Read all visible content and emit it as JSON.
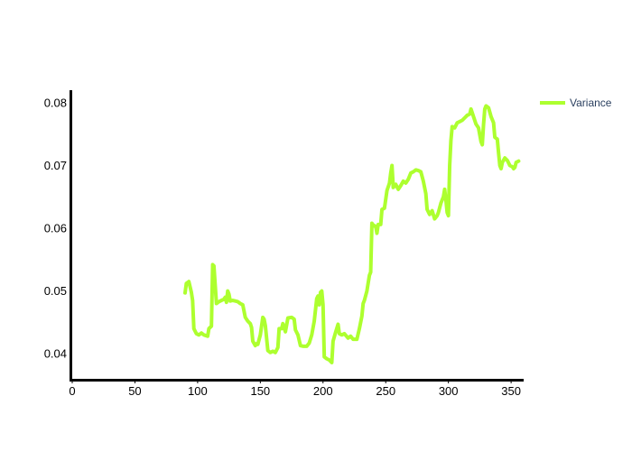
{
  "chart_data": {
    "type": "line",
    "title": "",
    "xlabel": "",
    "ylabel": "",
    "xlim": [
      0,
      360
    ],
    "ylim": [
      0.036,
      0.082
    ],
    "x_ticks": [
      0,
      50,
      100,
      150,
      200,
      250,
      300,
      350
    ],
    "y_ticks": [
      0.04,
      0.05,
      0.06,
      0.07,
      0.08
    ],
    "x_tick_labels": [
      "0",
      "50",
      "100",
      "150",
      "200",
      "250",
      "300",
      "350"
    ],
    "y_tick_labels": [
      "0.04",
      "0.05",
      "0.06",
      "0.07",
      "0.08"
    ],
    "grid": false,
    "legend_position": "top-right",
    "series": [
      {
        "name": "Variance",
        "color": "#adff2f",
        "points": [
          [
            90,
            0.0497
          ],
          [
            91,
            0.0512
          ],
          [
            93,
            0.0515
          ],
          [
            95,
            0.0498
          ],
          [
            96,
            0.0485
          ],
          [
            97,
            0.044
          ],
          [
            99,
            0.0432
          ],
          [
            101,
            0.043
          ],
          [
            103,
            0.0433
          ],
          [
            105,
            0.043
          ],
          [
            108,
            0.0428
          ],
          [
            109,
            0.044
          ],
          [
            111,
            0.0444
          ],
          [
            112,
            0.0542
          ],
          [
            113,
            0.054
          ],
          [
            114,
            0.051
          ],
          [
            115,
            0.048
          ],
          [
            117,
            0.0483
          ],
          [
            119,
            0.0485
          ],
          [
            121,
            0.0487
          ],
          [
            122,
            0.049
          ],
          [
            123,
            0.0482
          ],
          [
            124,
            0.05
          ],
          [
            125,
            0.0495
          ],
          [
            126,
            0.0484
          ],
          [
            128,
            0.0485
          ],
          [
            130,
            0.0484
          ],
          [
            132,
            0.0483
          ],
          [
            134,
            0.048
          ],
          [
            136,
            0.0478
          ],
          [
            138,
            0.0458
          ],
          [
            140,
            0.0452
          ],
          [
            142,
            0.0448
          ],
          [
            143,
            0.0442
          ],
          [
            144,
            0.042
          ],
          [
            146,
            0.0413
          ],
          [
            147,
            0.0416
          ],
          [
            148,
            0.0415
          ],
          [
            150,
            0.043
          ],
          [
            152,
            0.0458
          ],
          [
            153,
            0.0455
          ],
          [
            154,
            0.0445
          ],
          [
            155,
            0.0425
          ],
          [
            156,
            0.0405
          ],
          [
            158,
            0.0402
          ],
          [
            160,
            0.0404
          ],
          [
            162,
            0.0402
          ],
          [
            164,
            0.041
          ],
          [
            165,
            0.044
          ],
          [
            167,
            0.044
          ],
          [
            168,
            0.0448
          ],
          [
            170,
            0.0435
          ],
          [
            172,
            0.0457
          ],
          [
            175,
            0.0458
          ],
          [
            177,
            0.0455
          ],
          [
            178,
            0.0438
          ],
          [
            180,
            0.043
          ],
          [
            182,
            0.0413
          ],
          [
            184,
            0.0412
          ],
          [
            187,
            0.0412
          ],
          [
            189,
            0.0417
          ],
          [
            191,
            0.043
          ],
          [
            193,
            0.0452
          ],
          [
            195,
            0.0488
          ],
          [
            196,
            0.0492
          ],
          [
            197,
            0.0478
          ],
          [
            198,
            0.0498
          ],
          [
            199,
            0.05
          ],
          [
            200,
            0.0478
          ],
          [
            201,
            0.0395
          ],
          [
            203,
            0.0392
          ],
          [
            205,
            0.039
          ],
          [
            207,
            0.0386
          ],
          [
            208,
            0.042
          ],
          [
            210,
            0.0434
          ],
          [
            212,
            0.0447
          ],
          [
            213,
            0.0432
          ],
          [
            215,
            0.043
          ],
          [
            217,
            0.0432
          ],
          [
            220,
            0.0425
          ],
          [
            222,
            0.0428
          ],
          [
            224,
            0.0423
          ],
          [
            227,
            0.0423
          ],
          [
            229,
            0.044
          ],
          [
            231,
            0.046
          ],
          [
            232,
            0.048
          ],
          [
            233,
            0.0485
          ],
          [
            235,
            0.05
          ],
          [
            237,
            0.0525
          ],
          [
            238,
            0.053
          ],
          [
            239,
            0.0608
          ],
          [
            240,
            0.0605
          ],
          [
            242,
            0.0603
          ],
          [
            243,
            0.0592
          ],
          [
            244,
            0.0606
          ],
          [
            246,
            0.0606
          ],
          [
            247,
            0.063
          ],
          [
            249,
            0.0632
          ],
          [
            251,
            0.066
          ],
          [
            253,
            0.0672
          ],
          [
            254,
            0.0688
          ],
          [
            255,
            0.07
          ],
          [
            256,
            0.0665
          ],
          [
            258,
            0.067
          ],
          [
            260,
            0.0662
          ],
          [
            262,
            0.0668
          ],
          [
            264,
            0.0675
          ],
          [
            266,
            0.0672
          ],
          [
            268,
            0.0678
          ],
          [
            270,
            0.0688
          ],
          [
            272,
            0.069
          ],
          [
            274,
            0.0693
          ],
          [
            276,
            0.0692
          ],
          [
            278,
            0.069
          ],
          [
            280,
            0.0675
          ],
          [
            282,
            0.0655
          ],
          [
            283,
            0.063
          ],
          [
            285,
            0.0622
          ],
          [
            287,
            0.0628
          ],
          [
            289,
            0.0615
          ],
          [
            291,
            0.062
          ],
          [
            292,
            0.0625
          ],
          [
            294,
            0.064
          ],
          [
            296,
            0.065
          ],
          [
            297,
            0.0662
          ],
          [
            298,
            0.0645
          ],
          [
            299,
            0.0625
          ],
          [
            300,
            0.062
          ],
          [
            301,
            0.07
          ],
          [
            302,
            0.074
          ],
          [
            303,
            0.0762
          ],
          [
            305,
            0.076
          ],
          [
            307,
            0.0768
          ],
          [
            309,
            0.077
          ],
          [
            311,
            0.0772
          ],
          [
            313,
            0.0776
          ],
          [
            315,
            0.078
          ],
          [
            317,
            0.0782
          ],
          [
            318,
            0.079
          ],
          [
            320,
            0.0778
          ],
          [
            322,
            0.0766
          ],
          [
            324,
            0.076
          ],
          [
            326,
            0.0738
          ],
          [
            327,
            0.0733
          ],
          [
            328,
            0.0765
          ],
          [
            329,
            0.079
          ],
          [
            330,
            0.0795
          ],
          [
            332,
            0.0792
          ],
          [
            334,
            0.0778
          ],
          [
            336,
            0.0768
          ],
          [
            337,
            0.0745
          ],
          [
            339,
            0.0742
          ],
          [
            340,
            0.072
          ],
          [
            341,
            0.07
          ],
          [
            342,
            0.0695
          ],
          [
            343,
            0.0705
          ],
          [
            345,
            0.0712
          ],
          [
            347,
            0.0708
          ],
          [
            349,
            0.07
          ],
          [
            351,
            0.0698
          ],
          [
            352,
            0.0695
          ],
          [
            353,
            0.0697
          ],
          [
            354,
            0.0705
          ],
          [
            356,
            0.0707
          ]
        ]
      }
    ]
  }
}
